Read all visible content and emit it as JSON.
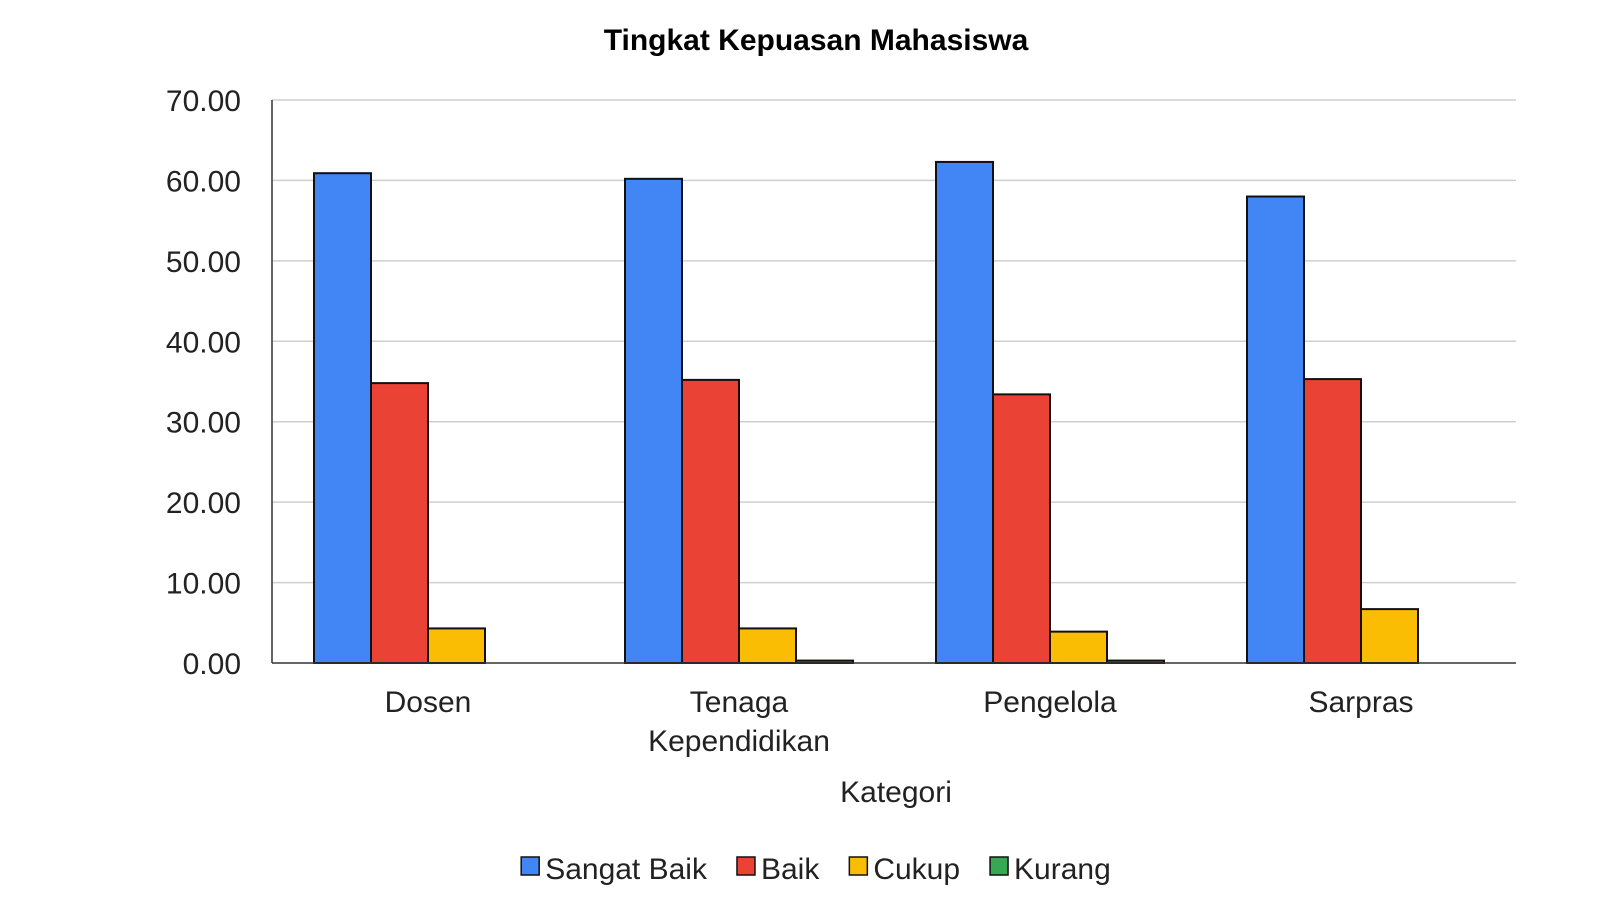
{
  "chart_data": {
    "type": "bar",
    "title": "Tingkat Kepuasan Mahasiswa",
    "xlabel": "Kategori",
    "ylabel": "",
    "ylim": [
      0,
      70
    ],
    "yticks": [
      "0.00",
      "10.00",
      "20.00",
      "30.00",
      "40.00",
      "50.00",
      "60.00",
      "70.00"
    ],
    "grid": true,
    "legend_position": "bottom",
    "categories": [
      [
        "Dosen"
      ],
      [
        "Tenaga",
        "Kependidikan"
      ],
      [
        "Pengelola"
      ],
      [
        "Sarpras"
      ]
    ],
    "series": [
      {
        "name": "Sangat Baik",
        "color": "#4285F4",
        "values": [
          60.9,
          60.2,
          62.3,
          58.0
        ]
      },
      {
        "name": "Baik",
        "color": "#EA4335",
        "values": [
          34.8,
          35.2,
          33.4,
          35.3
        ]
      },
      {
        "name": "Cukup",
        "color": "#FBBC04",
        "values": [
          4.3,
          4.3,
          3.9,
          6.7
        ]
      },
      {
        "name": "Kurang",
        "color": "#34A853",
        "values": [
          0.0,
          0.3,
          0.3,
          0.0
        ]
      }
    ]
  }
}
